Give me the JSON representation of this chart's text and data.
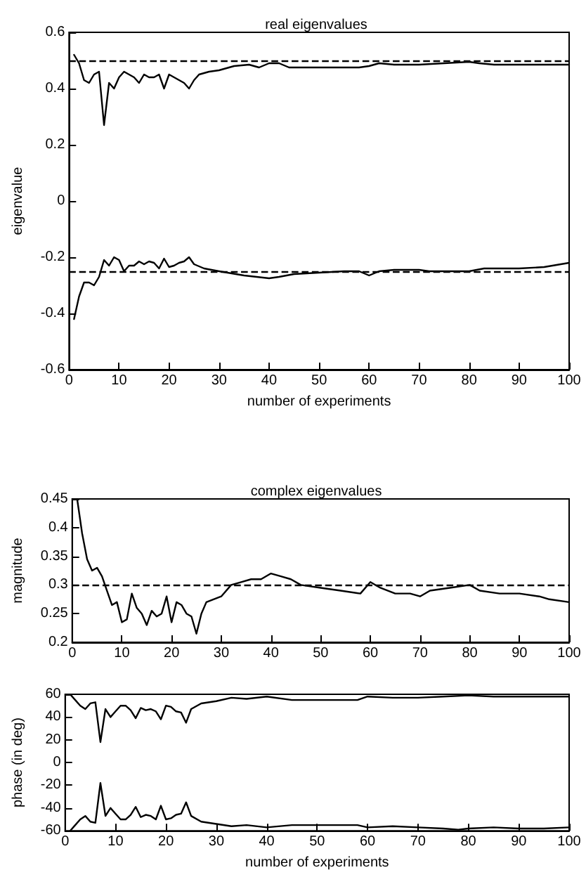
{
  "chart_data": [
    {
      "type": "line",
      "title": "real eigenvalues",
      "xlabel": "number of experiments",
      "ylabel": "eigenvalue",
      "xlim": [
        0,
        100
      ],
      "xticks": [
        0,
        10,
        20,
        30,
        40,
        50,
        60,
        70,
        80,
        90,
        100
      ],
      "ylim": [
        -0.6,
        0.6
      ],
      "yticks": [
        -0.6,
        -0.4,
        -0.2,
        0,
        0.2,
        0.4,
        0.6
      ],
      "grid": false,
      "marker": "none",
      "line_style": "solid",
      "ref_lines": [
        {
          "axis": "y",
          "value": 0.5,
          "line_style": "dashed",
          "color": "#000000"
        },
        {
          "axis": "y",
          "value": -0.25,
          "line_style": "dashed",
          "color": "#000000"
        }
      ],
      "series": [
        {
          "color": "#000000",
          "x": [
            1,
            2,
            3,
            4,
            5,
            6,
            7,
            8,
            9,
            10,
            11,
            12,
            13,
            14,
            15,
            16,
            17,
            18,
            19,
            20,
            21,
            22,
            23,
            24,
            25,
            26,
            28,
            30,
            33,
            36,
            38,
            40,
            42,
            44,
            50,
            55,
            58,
            60,
            62,
            65,
            70,
            75,
            80,
            82,
            85,
            90,
            95,
            100
          ],
          "values": [
            0.52,
            0.49,
            0.43,
            0.42,
            0.45,
            0.46,
            0.27,
            0.42,
            0.4,
            0.44,
            0.46,
            0.45,
            0.44,
            0.42,
            0.45,
            0.44,
            0.44,
            0.45,
            0.4,
            0.45,
            0.44,
            0.43,
            0.42,
            0.4,
            0.43,
            0.45,
            0.46,
            0.465,
            0.48,
            0.485,
            0.475,
            0.49,
            0.49,
            0.475,
            0.475,
            0.475,
            0.475,
            0.48,
            0.49,
            0.485,
            0.485,
            0.49,
            0.495,
            0.49,
            0.485,
            0.485,
            0.485,
            0.485
          ]
        },
        {
          "color": "#000000",
          "x": [
            1,
            2,
            3,
            4,
            5,
            6,
            7,
            8,
            9,
            10,
            11,
            12,
            13,
            14,
            15,
            16,
            17,
            18,
            19,
            20,
            21,
            22,
            23,
            24,
            25,
            27,
            30,
            35,
            40,
            42,
            45,
            50,
            55,
            58,
            60,
            62,
            65,
            70,
            72,
            80,
            83,
            90,
            95,
            100
          ],
          "values": [
            -0.42,
            -0.34,
            -0.29,
            -0.29,
            -0.3,
            -0.27,
            -0.21,
            -0.23,
            -0.2,
            -0.21,
            -0.25,
            -0.23,
            -0.23,
            -0.215,
            -0.225,
            -0.215,
            -0.22,
            -0.24,
            -0.205,
            -0.235,
            -0.23,
            -0.22,
            -0.215,
            -0.2,
            -0.225,
            -0.24,
            -0.25,
            -0.265,
            -0.275,
            -0.27,
            -0.26,
            -0.255,
            -0.25,
            -0.25,
            -0.265,
            -0.25,
            -0.245,
            -0.245,
            -0.25,
            -0.25,
            -0.24,
            -0.24,
            -0.235,
            -0.22
          ]
        }
      ]
    },
    {
      "type": "line",
      "title": "complex eigenvalues",
      "ylabel": "magnitude",
      "xlim": [
        0,
        100
      ],
      "xticks": [
        0,
        10,
        20,
        30,
        40,
        50,
        60,
        70,
        80,
        90,
        100
      ],
      "ylim": [
        0.2,
        0.45
      ],
      "yticks": [
        0.2,
        0.25,
        0.3,
        0.35,
        0.4,
        0.45
      ],
      "grid": false,
      "marker": "none",
      "line_style": "solid",
      "ref_lines": [
        {
          "axis": "y",
          "value": 0.3,
          "line_style": "dashed",
          "color": "#000000"
        }
      ],
      "series": [
        {
          "color": "#000000",
          "x": [
            1,
            2,
            3,
            4,
            5,
            6,
            7,
            8,
            9,
            10,
            11,
            12,
            13,
            14,
            15,
            16,
            17,
            18,
            19,
            20,
            21,
            22,
            23,
            24,
            25,
            26,
            27,
            30,
            32,
            34,
            36,
            38,
            40,
            42,
            44,
            46,
            50,
            54,
            58,
            60,
            62,
            65,
            68,
            70,
            72,
            76,
            80,
            82,
            86,
            90,
            94,
            96,
            100
          ],
          "values": [
            0.45,
            0.39,
            0.345,
            0.325,
            0.33,
            0.315,
            0.29,
            0.265,
            0.27,
            0.235,
            0.24,
            0.285,
            0.26,
            0.25,
            0.23,
            0.255,
            0.245,
            0.25,
            0.28,
            0.235,
            0.27,
            0.265,
            0.25,
            0.245,
            0.215,
            0.25,
            0.27,
            0.28,
            0.3,
            0.305,
            0.31,
            0.31,
            0.32,
            0.315,
            0.31,
            0.3,
            0.295,
            0.29,
            0.285,
            0.305,
            0.295,
            0.285,
            0.285,
            0.28,
            0.29,
            0.295,
            0.3,
            0.29,
            0.285,
            0.285,
            0.28,
            0.275,
            0.27
          ]
        }
      ]
    },
    {
      "type": "line",
      "xlabel": "number of experiments",
      "ylabel": "phase (in deg)",
      "xlim": [
        0,
        100
      ],
      "xticks": [
        0,
        10,
        20,
        30,
        40,
        50,
        60,
        70,
        80,
        90,
        100
      ],
      "ylim": [
        -60,
        60
      ],
      "yticks": [
        -60,
        -40,
        -20,
        0,
        20,
        40,
        60
      ],
      "grid": false,
      "marker": "none",
      "line_style": "solid",
      "series": [
        {
          "color": "#000000",
          "x": [
            1,
            2,
            3,
            4,
            5,
            6,
            7,
            8,
            9,
            10,
            11,
            12,
            13,
            14,
            15,
            16,
            17,
            18,
            19,
            20,
            21,
            22,
            23,
            24,
            25,
            27,
            30,
            33,
            36,
            40,
            45,
            50,
            55,
            58,
            60,
            65,
            70,
            75,
            80,
            85,
            90,
            95,
            100
          ],
          "values": [
            60,
            55,
            50,
            47,
            52,
            53,
            18,
            47,
            40,
            45,
            50,
            50,
            46,
            39,
            48,
            46,
            47,
            45,
            38,
            50,
            49,
            45,
            44,
            35,
            47,
            52,
            54,
            57,
            56,
            58,
            55,
            55,
            55,
            55,
            58,
            57,
            57,
            58,
            59,
            58,
            58,
            58,
            58
          ]
        },
        {
          "color": "#000000",
          "x": [
            1,
            2,
            3,
            4,
            5,
            6,
            7,
            8,
            9,
            10,
            11,
            12,
            13,
            14,
            15,
            16,
            17,
            18,
            19,
            20,
            21,
            22,
            23,
            24,
            25,
            27,
            30,
            33,
            36,
            40,
            45,
            50,
            55,
            58,
            60,
            65,
            70,
            75,
            78,
            80,
            85,
            90,
            95,
            100
          ],
          "values": [
            -60,
            -55,
            -50,
            -47,
            -52,
            -53,
            -18,
            -47,
            -40,
            -45,
            -50,
            -50,
            -46,
            -39,
            -48,
            -46,
            -47,
            -50,
            -38,
            -50,
            -49,
            -46,
            -45,
            -35,
            -47,
            -52,
            -54,
            -56,
            -55,
            -57,
            -55,
            -55,
            -55,
            -55,
            -57,
            -56,
            -57,
            -58,
            -59,
            -58,
            -57,
            -58,
            -58,
            -57
          ]
        }
      ]
    }
  ]
}
